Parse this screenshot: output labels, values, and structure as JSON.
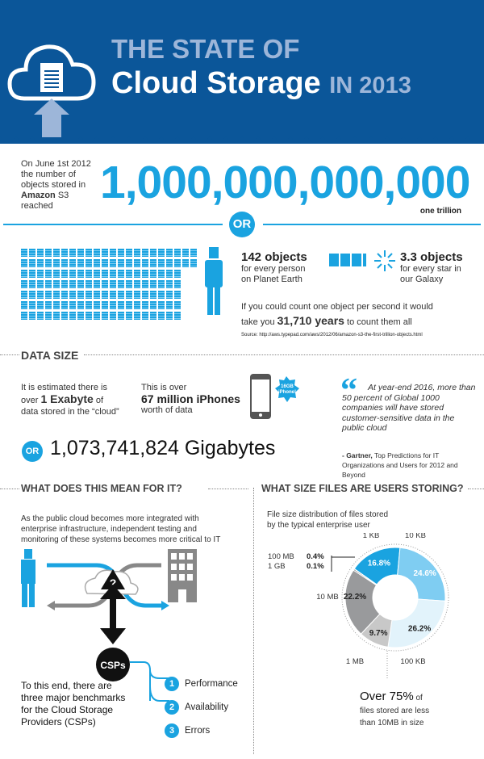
{
  "header": {
    "title_line1": "THE STATE OF",
    "title_main": "Cloud Storage",
    "title_year": "IN 2013"
  },
  "intro": {
    "line1": "On June 1st 2012",
    "line2": "the number of",
    "line3": "objects stored in",
    "brand": "Amazon",
    "line4_rest": " S3 reached",
    "big_number": "1,000,000,000,000",
    "caption": "one trillion",
    "or": "OR"
  },
  "objects": {
    "per_person_value": "142 objects",
    "per_person_l1": "for every person",
    "per_person_l2": "on Planet Earth",
    "per_star_value": "3.3 objects",
    "per_star_l1": "for every star in",
    "per_star_l2": "our Galaxy",
    "count_l1": "If you could count one object per second it would",
    "count_pre": "take you ",
    "count_value": "31,710 years",
    "count_post": " to count them all",
    "source": "Source: http://aws.typepad.com/aws/2012/06/amazon-s3-the-first-trillion-objects.html"
  },
  "data_size": {
    "heading": "DATA SIZE",
    "est_l1": "It is estimated there is",
    "est_pre": "over ",
    "est_value": "1 Exabyte",
    "est_post": " of",
    "est_l3": "data stored in the “cloud”",
    "iph_l1": "This is over",
    "iph_value": "67 million iPhones",
    "iph_l3": "worth of data",
    "badge_l1": "16GB",
    "badge_l2": "iPhone!",
    "or": "OR",
    "gigabytes": "1,073,741,824 Gigabytes",
    "quote": "At year-end 2016, more than 50 percent of Global 1000 companies will have stored customer-sensitive data in the public cloud",
    "attr_name": "- Gartner,",
    "attr_rest": " Top Predictions for IT Organizations and Users for 2012 and Beyond"
  },
  "it": {
    "heading": "WHAT DOES THIS MEAN FOR IT?",
    "desc": "As the public cloud becomes more integrated with enterprise infrastructure, independent testing and monitoring of these systems becomes more critical to IT",
    "question": "?",
    "csps": "CSPs",
    "benchmark_text": "To this end, there are three major benchmarks for the Cloud Storage Providers (CSPs)",
    "benchmarks": [
      {
        "num": "1",
        "label": "Performance"
      },
      {
        "num": "2",
        "label": "Availability"
      },
      {
        "num": "3",
        "label": "Errors"
      }
    ]
  },
  "files": {
    "heading": "WHAT SIZE FILES ARE USERS STORING?",
    "desc_l1": "File size distribution of files stored",
    "desc_l2": "by the typical enterprise user",
    "summary_value": "Over 75%",
    "summary_post": " of",
    "summary_l2": "files stored are less",
    "summary_l3": "than 10MB in size"
  },
  "colors": {
    "header": "#0b5699",
    "accent": "#1aa3e0",
    "header_light": "#9db6d9"
  },
  "chart_data": {
    "type": "pie",
    "donut": true,
    "title": "File size distribution of files stored by the typical enterprise user",
    "categories": [
      "1 KB",
      "10 KB",
      "100 KB",
      "1 MB",
      "10 MB",
      "100 MB",
      "1 GB"
    ],
    "values": [
      16.8,
      24.6,
      26.2,
      9.7,
      22.2,
      0.4,
      0.1
    ],
    "labels": [
      "16.8%",
      "24.6%",
      "26.2%",
      "9.7%",
      "22.2%",
      "0.4%",
      "0.1%"
    ],
    "colors": [
      "#1aa3e0",
      "#7fcdf2",
      "#e2f3fb",
      "#c8c8c8",
      "#999a9c",
      "#555555",
      "#333333"
    ]
  }
}
